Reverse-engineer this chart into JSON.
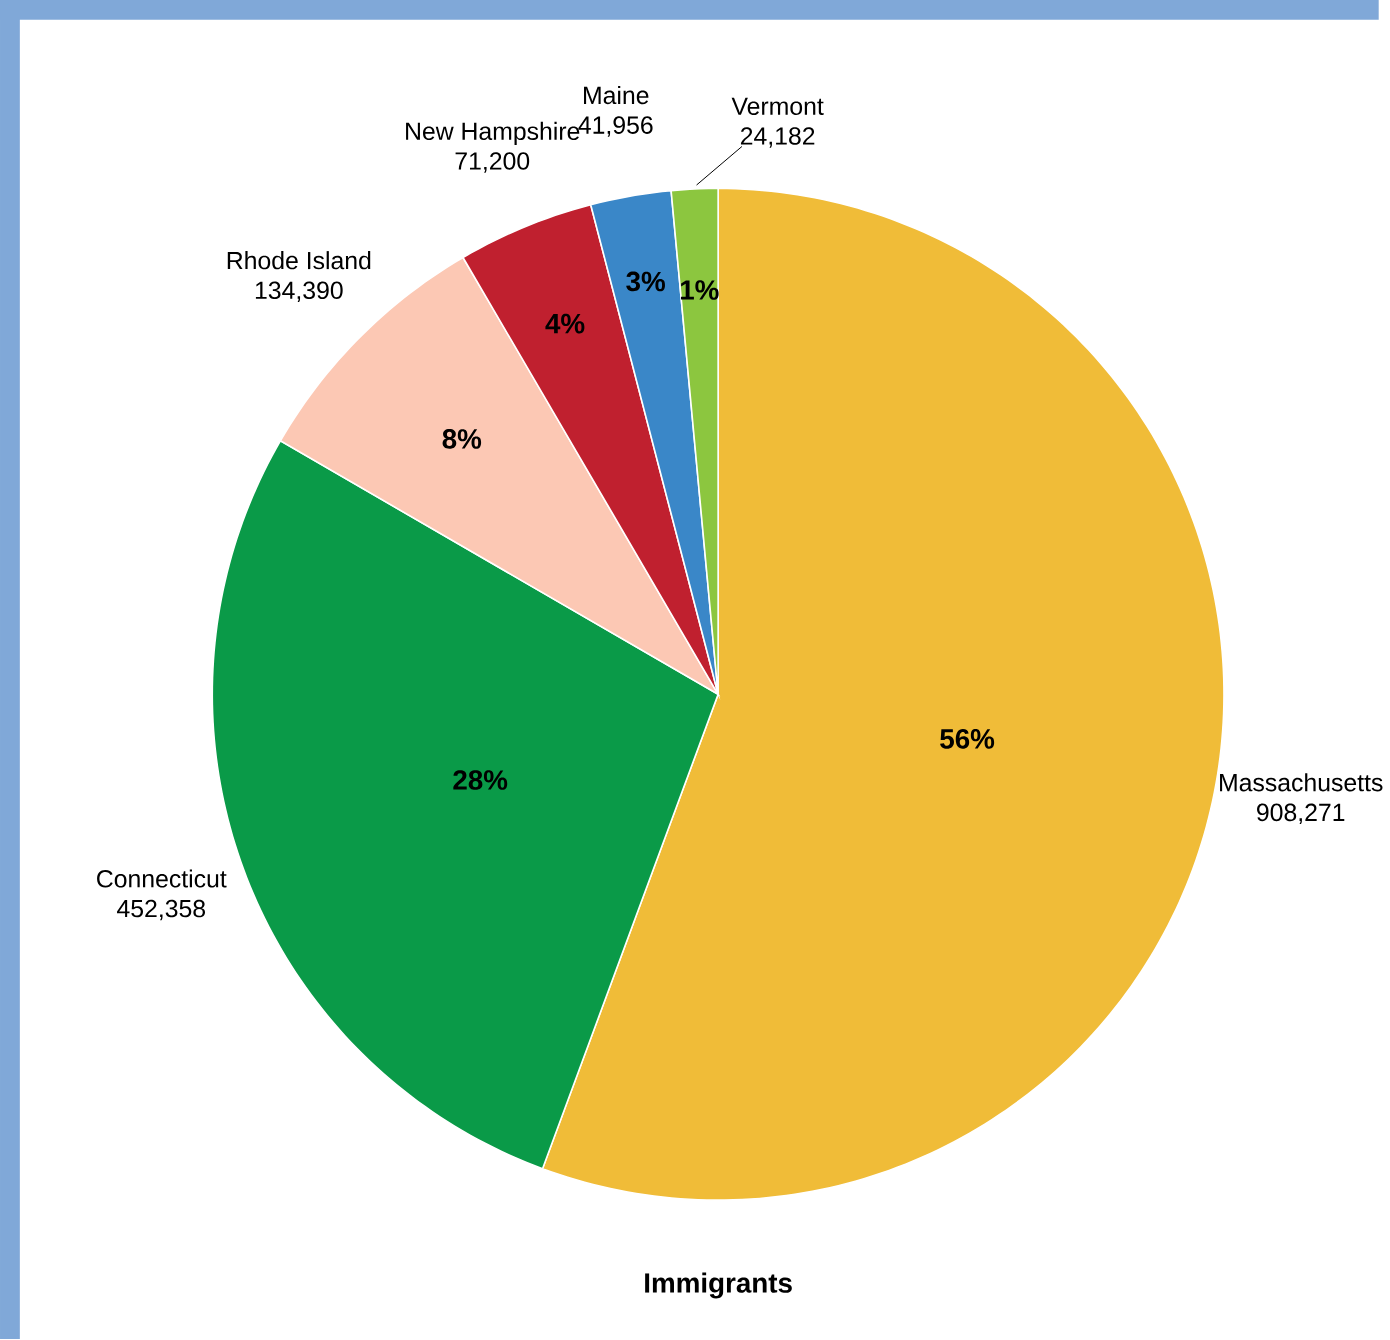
{
  "chart_data": {
    "type": "pie",
    "title": "Immigrants",
    "categories": [
      "Massachusetts",
      "Connecticut",
      "Rhode Island",
      "New Hampshire",
      "Maine",
      "Vermont"
    ],
    "values": [
      908271,
      452358,
      134390,
      71200,
      41956,
      24182
    ],
    "colors": [
      "#f0bc38",
      "#0a9a48",
      "#fcc8b4",
      "#c0202f",
      "#3a87c8",
      "#8cc63f"
    ],
    "value_labels": [
      "908,271",
      "452,358",
      "134,390",
      "71,200",
      "41,956",
      "24,182"
    ],
    "annotations": [
      "56%",
      "28%",
      "8%",
      "4%",
      "3%",
      "1%"
    ]
  }
}
